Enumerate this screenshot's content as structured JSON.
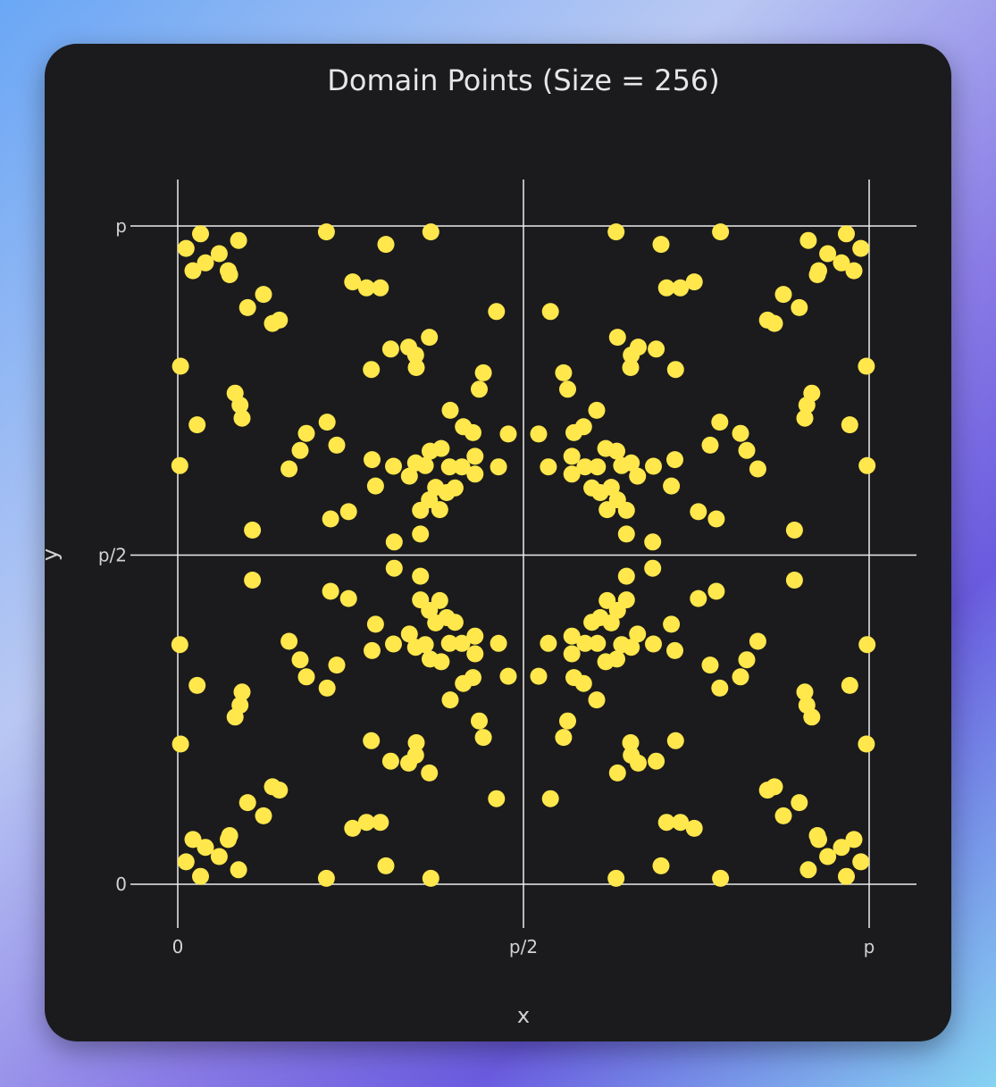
{
  "chart_data": {
    "type": "scatter",
    "title": "Domain Points (Size = 256)",
    "xlabel": "x",
    "ylabel": "y",
    "xlim": [
      0,
      1
    ],
    "ylim": [
      0,
      1
    ],
    "xticks": [
      {
        "value": 0,
        "label": "0"
      },
      {
        "value": 0.5,
        "label": "p/2"
      },
      {
        "value": 1,
        "label": "p"
      }
    ],
    "yticks": [
      {
        "value": 0,
        "label": "0"
      },
      {
        "value": 0.5,
        "label": "p/2"
      },
      {
        "value": 1,
        "label": "p"
      }
    ],
    "grid": true,
    "marker_color": "#ffe74c",
    "background_color": "#1b1b1d",
    "quadrant_points": [
      [
        0.012,
        0.966
      ],
      [
        0.022,
        0.932
      ],
      [
        0.033,
        0.988
      ],
      [
        0.04,
        0.944
      ],
      [
        0.06,
        0.958
      ],
      [
        0.073,
        0.932
      ],
      [
        0.075,
        0.926
      ],
      [
        0.088,
        0.978
      ],
      [
        0.101,
        0.876
      ],
      [
        0.124,
        0.896
      ],
      [
        0.137,
        0.852
      ],
      [
        0.147,
        0.857
      ],
      [
        0.215,
        0.991
      ],
      [
        0.253,
        0.915
      ],
      [
        0.273,
        0.906
      ],
      [
        0.293,
        0.906
      ],
      [
        0.301,
        0.972
      ],
      [
        0.366,
        0.991
      ],
      [
        0.004,
        0.787
      ],
      [
        0.028,
        0.698
      ],
      [
        0.083,
        0.746
      ],
      [
        0.09,
        0.728
      ],
      [
        0.093,
        0.708
      ],
      [
        0.003,
        0.636
      ],
      [
        0.108,
        0.538
      ],
      [
        0.161,
        0.631
      ],
      [
        0.177,
        0.659
      ],
      [
        0.186,
        0.685
      ],
      [
        0.216,
        0.702
      ],
      [
        0.23,
        0.667
      ],
      [
        0.221,
        0.555
      ],
      [
        0.247,
        0.566
      ],
      [
        0.28,
        0.782
      ],
      [
        0.308,
        0.813
      ],
      [
        0.334,
        0.816
      ],
      [
        0.344,
        0.804
      ],
      [
        0.364,
        0.831
      ],
      [
        0.345,
        0.785
      ],
      [
        0.461,
        0.87
      ],
      [
        0.442,
        0.777
      ],
      [
        0.436,
        0.752
      ],
      [
        0.394,
        0.72
      ],
      [
        0.413,
        0.695
      ],
      [
        0.427,
        0.686
      ],
      [
        0.478,
        0.684
      ],
      [
        0.281,
        0.645
      ],
      [
        0.286,
        0.605
      ],
      [
        0.312,
        0.635
      ],
      [
        0.335,
        0.62
      ],
      [
        0.344,
        0.64
      ],
      [
        0.358,
        0.636
      ],
      [
        0.365,
        0.658
      ],
      [
        0.381,
        0.662
      ],
      [
        0.393,
        0.634
      ],
      [
        0.411,
        0.634
      ],
      [
        0.43,
        0.65
      ],
      [
        0.43,
        0.623
      ],
      [
        0.464,
        0.634
      ],
      [
        0.373,
        0.603
      ],
      [
        0.389,
        0.595
      ],
      [
        0.401,
        0.602
      ],
      [
        0.364,
        0.584
      ],
      [
        0.351,
        0.568
      ],
      [
        0.379,
        0.569
      ],
      [
        0.351,
        0.532
      ],
      [
        0.313,
        0.52
      ]
    ]
  }
}
